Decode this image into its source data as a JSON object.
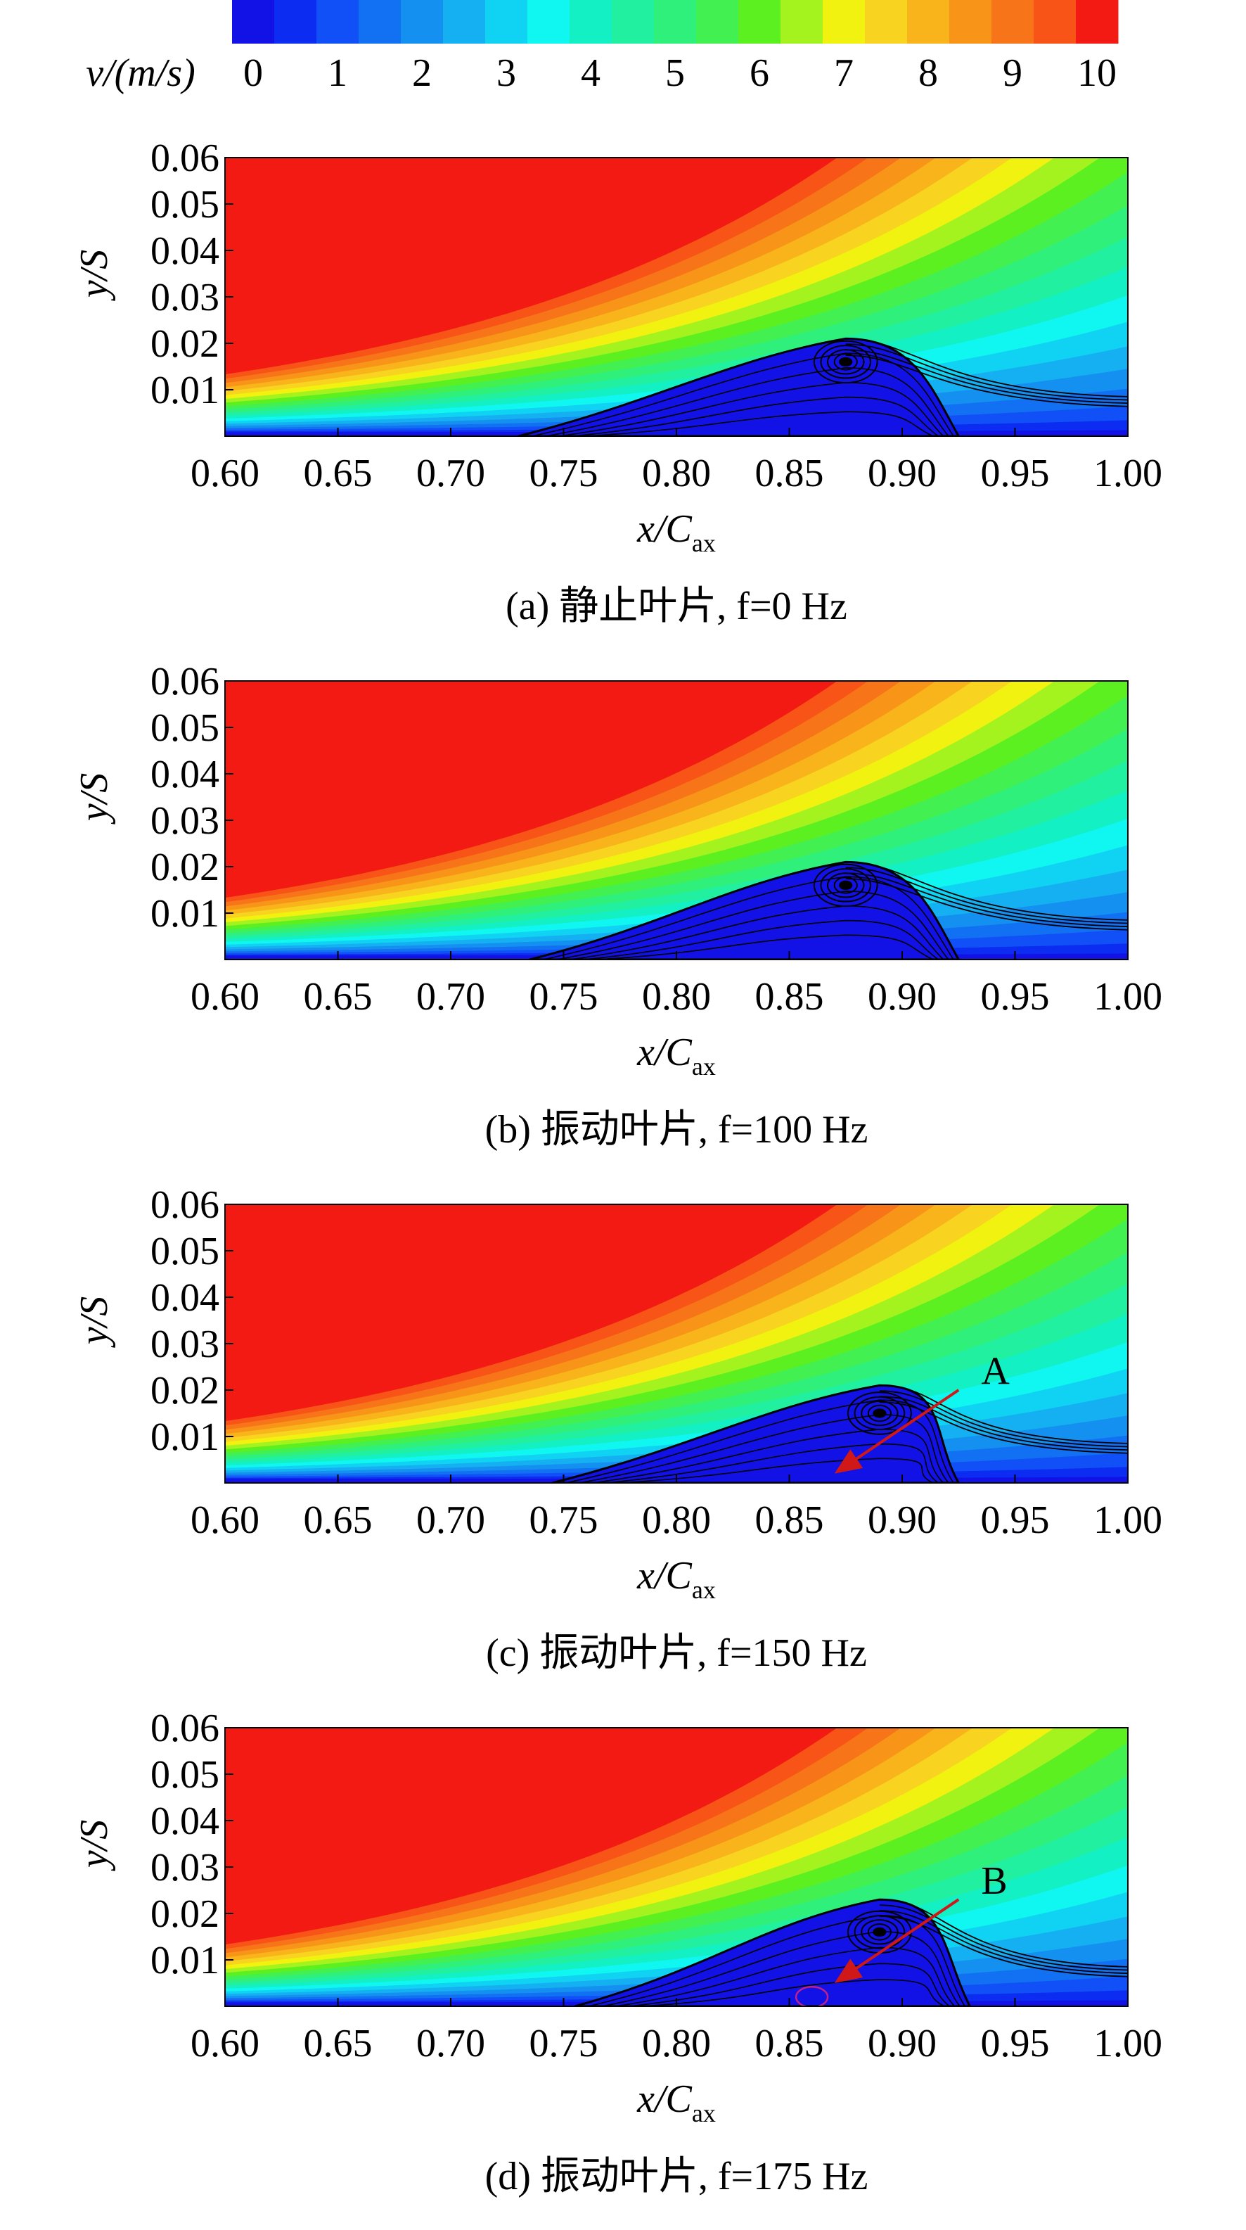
{
  "colorbar": {
    "label": "v/(m/s)",
    "ticks": [
      0,
      1,
      2,
      3,
      4,
      5,
      6,
      7,
      8,
      9,
      10
    ],
    "colors": [
      "#1212e6",
      "#0c2cf2",
      "#1050f6",
      "#1270f2",
      "#1490f0",
      "#14b0f2",
      "#10d2f2",
      "#10f6f0",
      "#12f0c4",
      "#20f0a0",
      "#30f07c",
      "#42f052",
      "#5cf020",
      "#a4f21e",
      "#f2f210",
      "#f8d420",
      "#f8b41a",
      "#f89418",
      "#f87418",
      "#f85418",
      "#f41a14"
    ]
  },
  "chart_data": [
    {
      "type": "contour",
      "caption": "(a) 静止叶片, f=0 Hz",
      "xlabel": "x/C",
      "xlabel_sub": "ax",
      "ylabel": "y/S",
      "xlim": [
        0.6,
        1.0
      ],
      "ylim": [
        0,
        0.06
      ],
      "xticks": [
        {
          "value": 0.6,
          "label": "0.60"
        },
        0.65,
        {
          "value": 0.7,
          "label": "0.70"
        },
        0.75,
        {
          "value": 0.8,
          "label": "0.80"
        },
        0.85,
        {
          "value": 0.9,
          "label": "0.90"
        },
        0.95,
        {
          "value": 1.0,
          "label": "1.00"
        }
      ],
      "yticks": [
        0.01,
        0.02,
        0.03,
        0.04,
        0.05,
        0.06
      ]
    },
    {
      "type": "contour",
      "caption": "(b) 振动叶片, f=100 Hz",
      "xlabel": "x/C",
      "xlabel_sub": "ax",
      "ylabel": "y/S",
      "xlim": [
        0.6,
        1.0
      ],
      "ylim": [
        0,
        0.06
      ],
      "xticks": [
        {
          "value": 0.6,
          "label": "0.60"
        },
        0.65,
        {
          "value": 0.7,
          "label": "0.70"
        },
        0.75,
        {
          "value": 0.8,
          "label": "0.80"
        },
        0.85,
        {
          "value": 0.9,
          "label": "0.90"
        },
        0.95,
        {
          "value": 1.0,
          "label": "1.00"
        }
      ],
      "yticks": [
        0.01,
        0.02,
        0.03,
        0.04,
        0.05,
        0.06
      ]
    },
    {
      "type": "contour",
      "caption": "(c) 振动叶片, f=150 Hz",
      "xlabel": "x/C",
      "xlabel_sub": "ax",
      "ylabel": "y/S",
      "xlim": [
        0.6,
        1.0
      ],
      "ylim": [
        0,
        0.06
      ],
      "xticks": [
        {
          "value": 0.6,
          "label": "0.60"
        },
        0.65,
        {
          "value": 0.7,
          "label": "0.70"
        },
        0.75,
        {
          "value": 0.8,
          "label": "0.80"
        },
        0.85,
        {
          "value": 0.9,
          "label": "0.90"
        },
        0.95,
        {
          "value": 1.0,
          "label": "1.00"
        }
      ],
      "yticks": [
        0.01,
        0.02,
        0.03,
        0.04,
        0.05,
        0.06
      ],
      "annotation": "A"
    },
    {
      "type": "contour",
      "caption": "(d) 振动叶片, f=175 Hz",
      "xlabel": "x/C",
      "xlabel_sub": "ax",
      "ylabel": "y/S",
      "xlim": [
        0.6,
        1.0
      ],
      "ylim": [
        0,
        0.06
      ],
      "xticks": [
        {
          "value": 0.6,
          "label": "0.60"
        },
        0.65,
        {
          "value": 0.7,
          "label": "0.70"
        },
        0.75,
        {
          "value": 0.8,
          "label": "0.80"
        },
        0.85,
        {
          "value": 0.9,
          "label": "0.90"
        },
        0.95,
        {
          "value": 1.0,
          "label": "1.00"
        }
      ],
      "yticks": [
        0.01,
        0.02,
        0.03,
        0.04,
        0.05,
        0.06
      ],
      "annotation": "B"
    }
  ]
}
